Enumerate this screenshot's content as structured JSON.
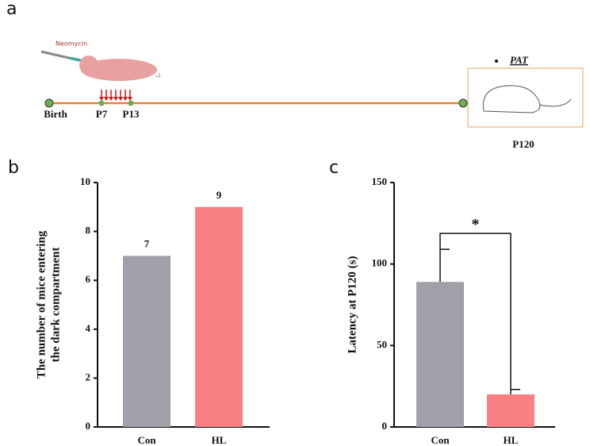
{
  "timeline": {
    "panel_label": "a",
    "drug": "Neomycin",
    "points": [
      "Birth",
      "P7",
      "P13"
    ],
    "test": "PAT",
    "end": "P120"
  },
  "chart_data": [
    {
      "type": "bar",
      "panel_label": "b",
      "ylabel": [
        "The number of mice entering",
        "the dark compartment"
      ],
      "categories": [
        "Con",
        "HL"
      ],
      "values": [
        7,
        9
      ],
      "colors": [
        "#a0a0a8",
        "#f98080"
      ],
      "ylim": [
        0,
        10
      ],
      "yticks": [
        0,
        2,
        4,
        6,
        8,
        10
      ],
      "show_values": true
    },
    {
      "type": "bar",
      "panel_label": "c",
      "ylabel": [
        "Latency at P120 (s)"
      ],
      "categories": [
        "Con",
        "HL"
      ],
      "values": [
        89,
        20
      ],
      "errors": [
        20,
        3
      ],
      "colors": [
        "#a0a0a8",
        "#f98080"
      ],
      "ylim": [
        0,
        150
      ],
      "yticks": [
        0,
        50,
        100,
        150
      ],
      "significance": "*"
    }
  ]
}
